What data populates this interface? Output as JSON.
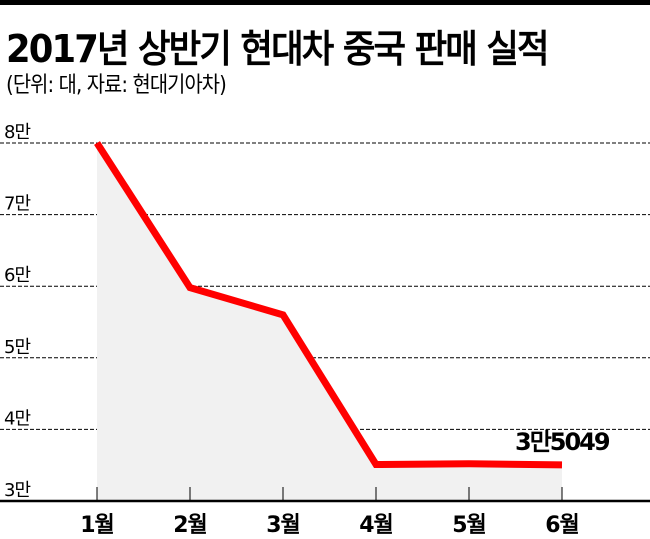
{
  "title": "2017년 상반기 현대차 중국 판매 실적",
  "subtitle": "(단위: 대, 자료: 현대기아차)",
  "annotation": "3만5049",
  "colors": {
    "line": "#ff0000",
    "area": "#f1f1f1",
    "grid": "#000000",
    "topbar": "#000000"
  },
  "y_ticks": [
    "8만",
    "7만",
    "6만",
    "5만",
    "4만",
    "3만"
  ],
  "x_ticks": [
    "1월",
    "2월",
    "3월",
    "4월",
    "5월",
    "6월"
  ],
  "chart_data": {
    "type": "area",
    "title": "2017년 상반기 현대차 중국 판매 실적",
    "subtitle": "(단위: 대, 자료: 현대기아차)",
    "categories": [
      "1월",
      "2월",
      "3월",
      "4월",
      "5월",
      "6월"
    ],
    "series": [
      {
        "name": "현대차 중국 판매",
        "values": [
          80000,
          59800,
          56000,
          35100,
          35200,
          35049
        ]
      }
    ],
    "annotations": [
      {
        "x": "6월",
        "text": "3만5049"
      }
    ],
    "xlabel": "",
    "ylabel": "",
    "ylim": [
      30000,
      80000
    ],
    "y_tick_labels": [
      "3만",
      "4만",
      "5만",
      "6만",
      "7만",
      "8만"
    ],
    "grid": "horizontal dashed",
    "legend": "none"
  }
}
